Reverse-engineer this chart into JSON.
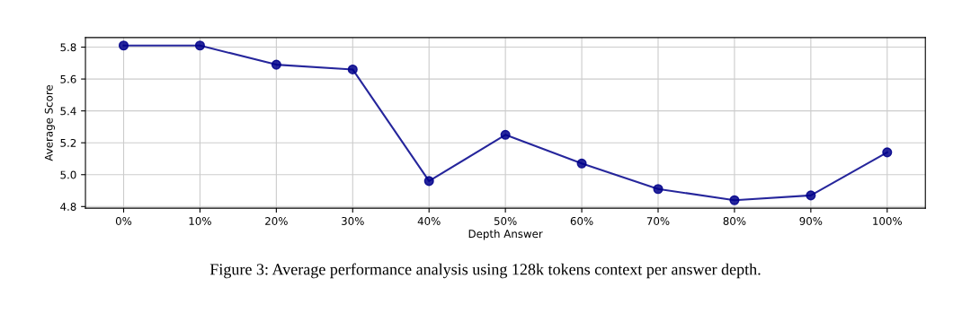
{
  "chart_data": {
    "type": "line",
    "categories": [
      "0%",
      "10%",
      "20%",
      "30%",
      "40%",
      "50%",
      "60%",
      "70%",
      "80%",
      "90%",
      "100%"
    ],
    "series": [
      {
        "color": "#00008b",
        "values": [
          5.81,
          5.81,
          5.69,
          5.66,
          4.96,
          5.25,
          5.07,
          4.91,
          4.84,
          4.87,
          5.14
        ]
      }
    ],
    "xlabel": "Depth Answer",
    "ylabel": "Average Score",
    "ylim": [
      4.79,
      5.86
    ],
    "yticks": [
      {
        "value": 4.8,
        "label": "4.8"
      },
      {
        "value": 5.0,
        "label": "5.0"
      },
      {
        "value": 5.2,
        "label": "5.2"
      },
      {
        "value": 5.4,
        "label": "5.4"
      },
      {
        "value": 5.6,
        "label": "5.6"
      },
      {
        "value": 5.8,
        "label": "5.8"
      }
    ],
    "grid": true,
    "marker": "circle",
    "line_style": "solid",
    "annotations": [
      "Figure 3: Average performance analysis using 128k tokens context per answer depth."
    ]
  }
}
